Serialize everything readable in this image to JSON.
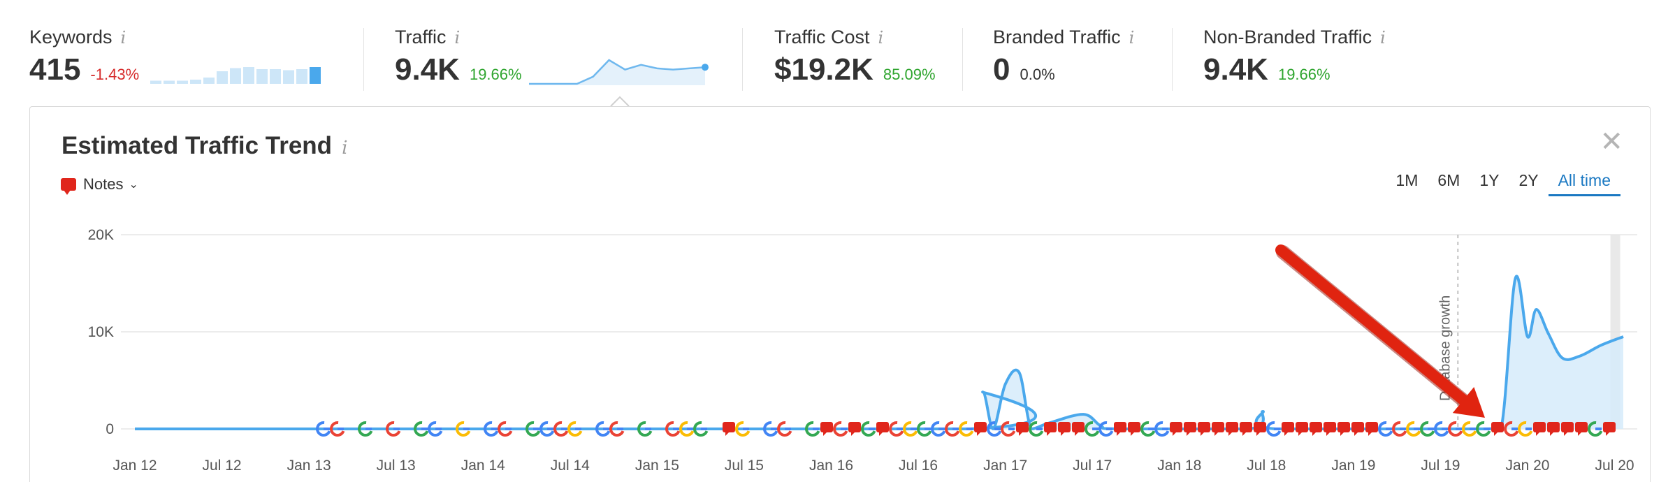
{
  "metrics": {
    "keywords": {
      "label": "Keywords",
      "value": "415",
      "change": "-1.43%",
      "info": "i"
    },
    "traffic": {
      "label": "Traffic",
      "value": "9.4K",
      "change": "19.66%",
      "info": "i"
    },
    "traffic_cost": {
      "label": "Traffic Cost",
      "value": "$19.2K",
      "change": "85.09%",
      "info": "i"
    },
    "branded": {
      "label": "Branded Traffic",
      "value": "0",
      "change": "0.0%",
      "info": "i"
    },
    "non_branded": {
      "label": "Non-Branded Traffic",
      "value": "9.4K",
      "change": "19.66%",
      "info": "i"
    }
  },
  "keywords_sparkbars": [
    0.15,
    0.15,
    0.15,
    0.2,
    0.3,
    0.6,
    0.75,
    0.8,
    0.7,
    0.7,
    0.65,
    0.7,
    0.8
  ],
  "traffic_sparkline": [
    0,
    0,
    0,
    0,
    0.3,
    1.0,
    0.6,
    0.8,
    0.65,
    0.6,
    0.65,
    0.7
  ],
  "panel": {
    "title": "Estimated Traffic Trend",
    "info": "i",
    "close": "✕",
    "notes_label": "Notes",
    "ranges": [
      "1M",
      "6M",
      "1Y",
      "2Y",
      "All time"
    ],
    "active_range": "All time"
  },
  "colors": {
    "line": "#4aa8ec",
    "area": "#d6ebfa",
    "note_red": "#e0261c",
    "arrow": "#e02410",
    "active": "#1a78c2"
  },
  "chart_data": {
    "type": "area",
    "y_ticks": [
      "20K",
      "10K",
      "0"
    ],
    "x_ticks": [
      "Jan 12",
      "Jul 12",
      "Jan 13",
      "Jul 13",
      "Jan 14",
      "Jul 14",
      "Jan 15",
      "Jul 15",
      "Jan 16",
      "Jul 16",
      "Jan 17",
      "Jul 17",
      "Jan 18",
      "Jul 18",
      "Jan 19",
      "Jul 19",
      "Jan 20",
      "Jul 20"
    ],
    "ylim": [
      0,
      20000
    ],
    "series": [
      {
        "x": [
          2012.0,
          2016.8,
          2016.87,
          2016.93,
          2017.0,
          2017.08,
          2017.15,
          2017.25,
          2017.45,
          2017.55,
          2017.65,
          2018.4,
          2018.48,
          2018.55,
          2019.75,
          2019.85,
          2019.93,
          2020.0,
          2020.05,
          2020.12,
          2020.2,
          2020.3,
          2020.42,
          2020.55
        ],
        "y": [
          0,
          0,
          3800,
          0,
          4600,
          5800,
          0,
          600,
          1500,
          300,
          0,
          0,
          1800,
          0,
          0,
          200,
          15500,
          9500,
          12300,
          9800,
          7300,
          7500,
          8600,
          9500
        ]
      }
    ],
    "annotation": "Database growth",
    "grid": true
  },
  "note_markers": "GG G G GG G GG GGGG GG G GGG nG GG GnGnGnGGGGGGnGGnGnnnGGnnGGnnnnnnnGnnnnnnnGGGGGGGGnGGnnnnGn"
}
